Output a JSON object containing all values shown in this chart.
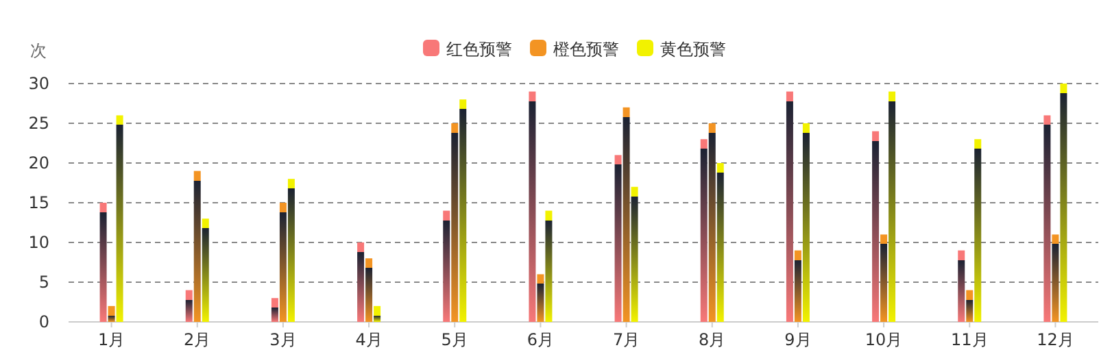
{
  "chart_data": {
    "type": "bar",
    "ylabel": "次",
    "categories": [
      "1月",
      "2月",
      "3月",
      "4月",
      "5月",
      "6月",
      "7月",
      "8月",
      "9月",
      "10月",
      "11月",
      "12月"
    ],
    "series": [
      {
        "name": "红色预警",
        "color": "#f87878",
        "values": [
          15,
          4,
          3,
          10,
          14,
          29,
          21,
          23,
          29,
          24,
          9,
          26
        ]
      },
      {
        "name": "橙色预警",
        "color": "#f39423",
        "values": [
          2,
          19,
          15,
          8,
          25,
          6,
          27,
          25,
          9,
          11,
          4,
          11
        ]
      },
      {
        "name": "黄色预警",
        "color": "#f2f200",
        "values": [
          26,
          13,
          18,
          2,
          28,
          14,
          17,
          20,
          25,
          29,
          23,
          30
        ]
      }
    ],
    "ylim": [
      0,
      30
    ],
    "yticks": [
      0,
      5,
      10,
      15,
      20,
      25,
      30
    ],
    "grid": "y",
    "legend": "top"
  }
}
